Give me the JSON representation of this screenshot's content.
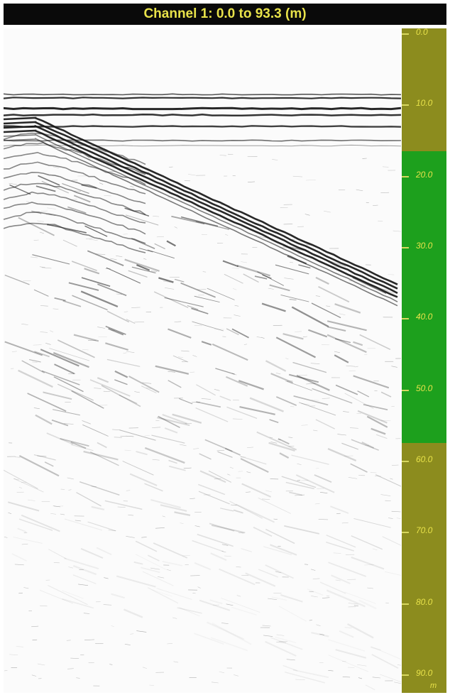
{
  "header": {
    "title": "Channel 1: 0.0 to 93.3 (m)"
  },
  "depth_scale": {
    "min": 0,
    "max": 93.3,
    "unit_label": "m",
    "highlight_range": [
      17.2,
      58.2
    ],
    "colors": {
      "base": "#8c8c1e",
      "highlight": "#1da01d",
      "text": "#e8e24a",
      "header_bg": "#0a0a0a"
    },
    "ticks": [
      {
        "value": 0.0,
        "label": "0.0"
      },
      {
        "value": 10.0,
        "label": "10.0"
      },
      {
        "value": 20.0,
        "label": "20.0"
      },
      {
        "value": 30.0,
        "label": "30.0"
      },
      {
        "value": 40.0,
        "label": "40.0"
      },
      {
        "value": 50.0,
        "label": "50.0"
      },
      {
        "value": 60.0,
        "label": "60.0"
      },
      {
        "value": 70.0,
        "label": "70.0"
      },
      {
        "value": 80.0,
        "label": "80.0"
      },
      {
        "value": 90.0,
        "label": "90.0"
      }
    ]
  }
}
